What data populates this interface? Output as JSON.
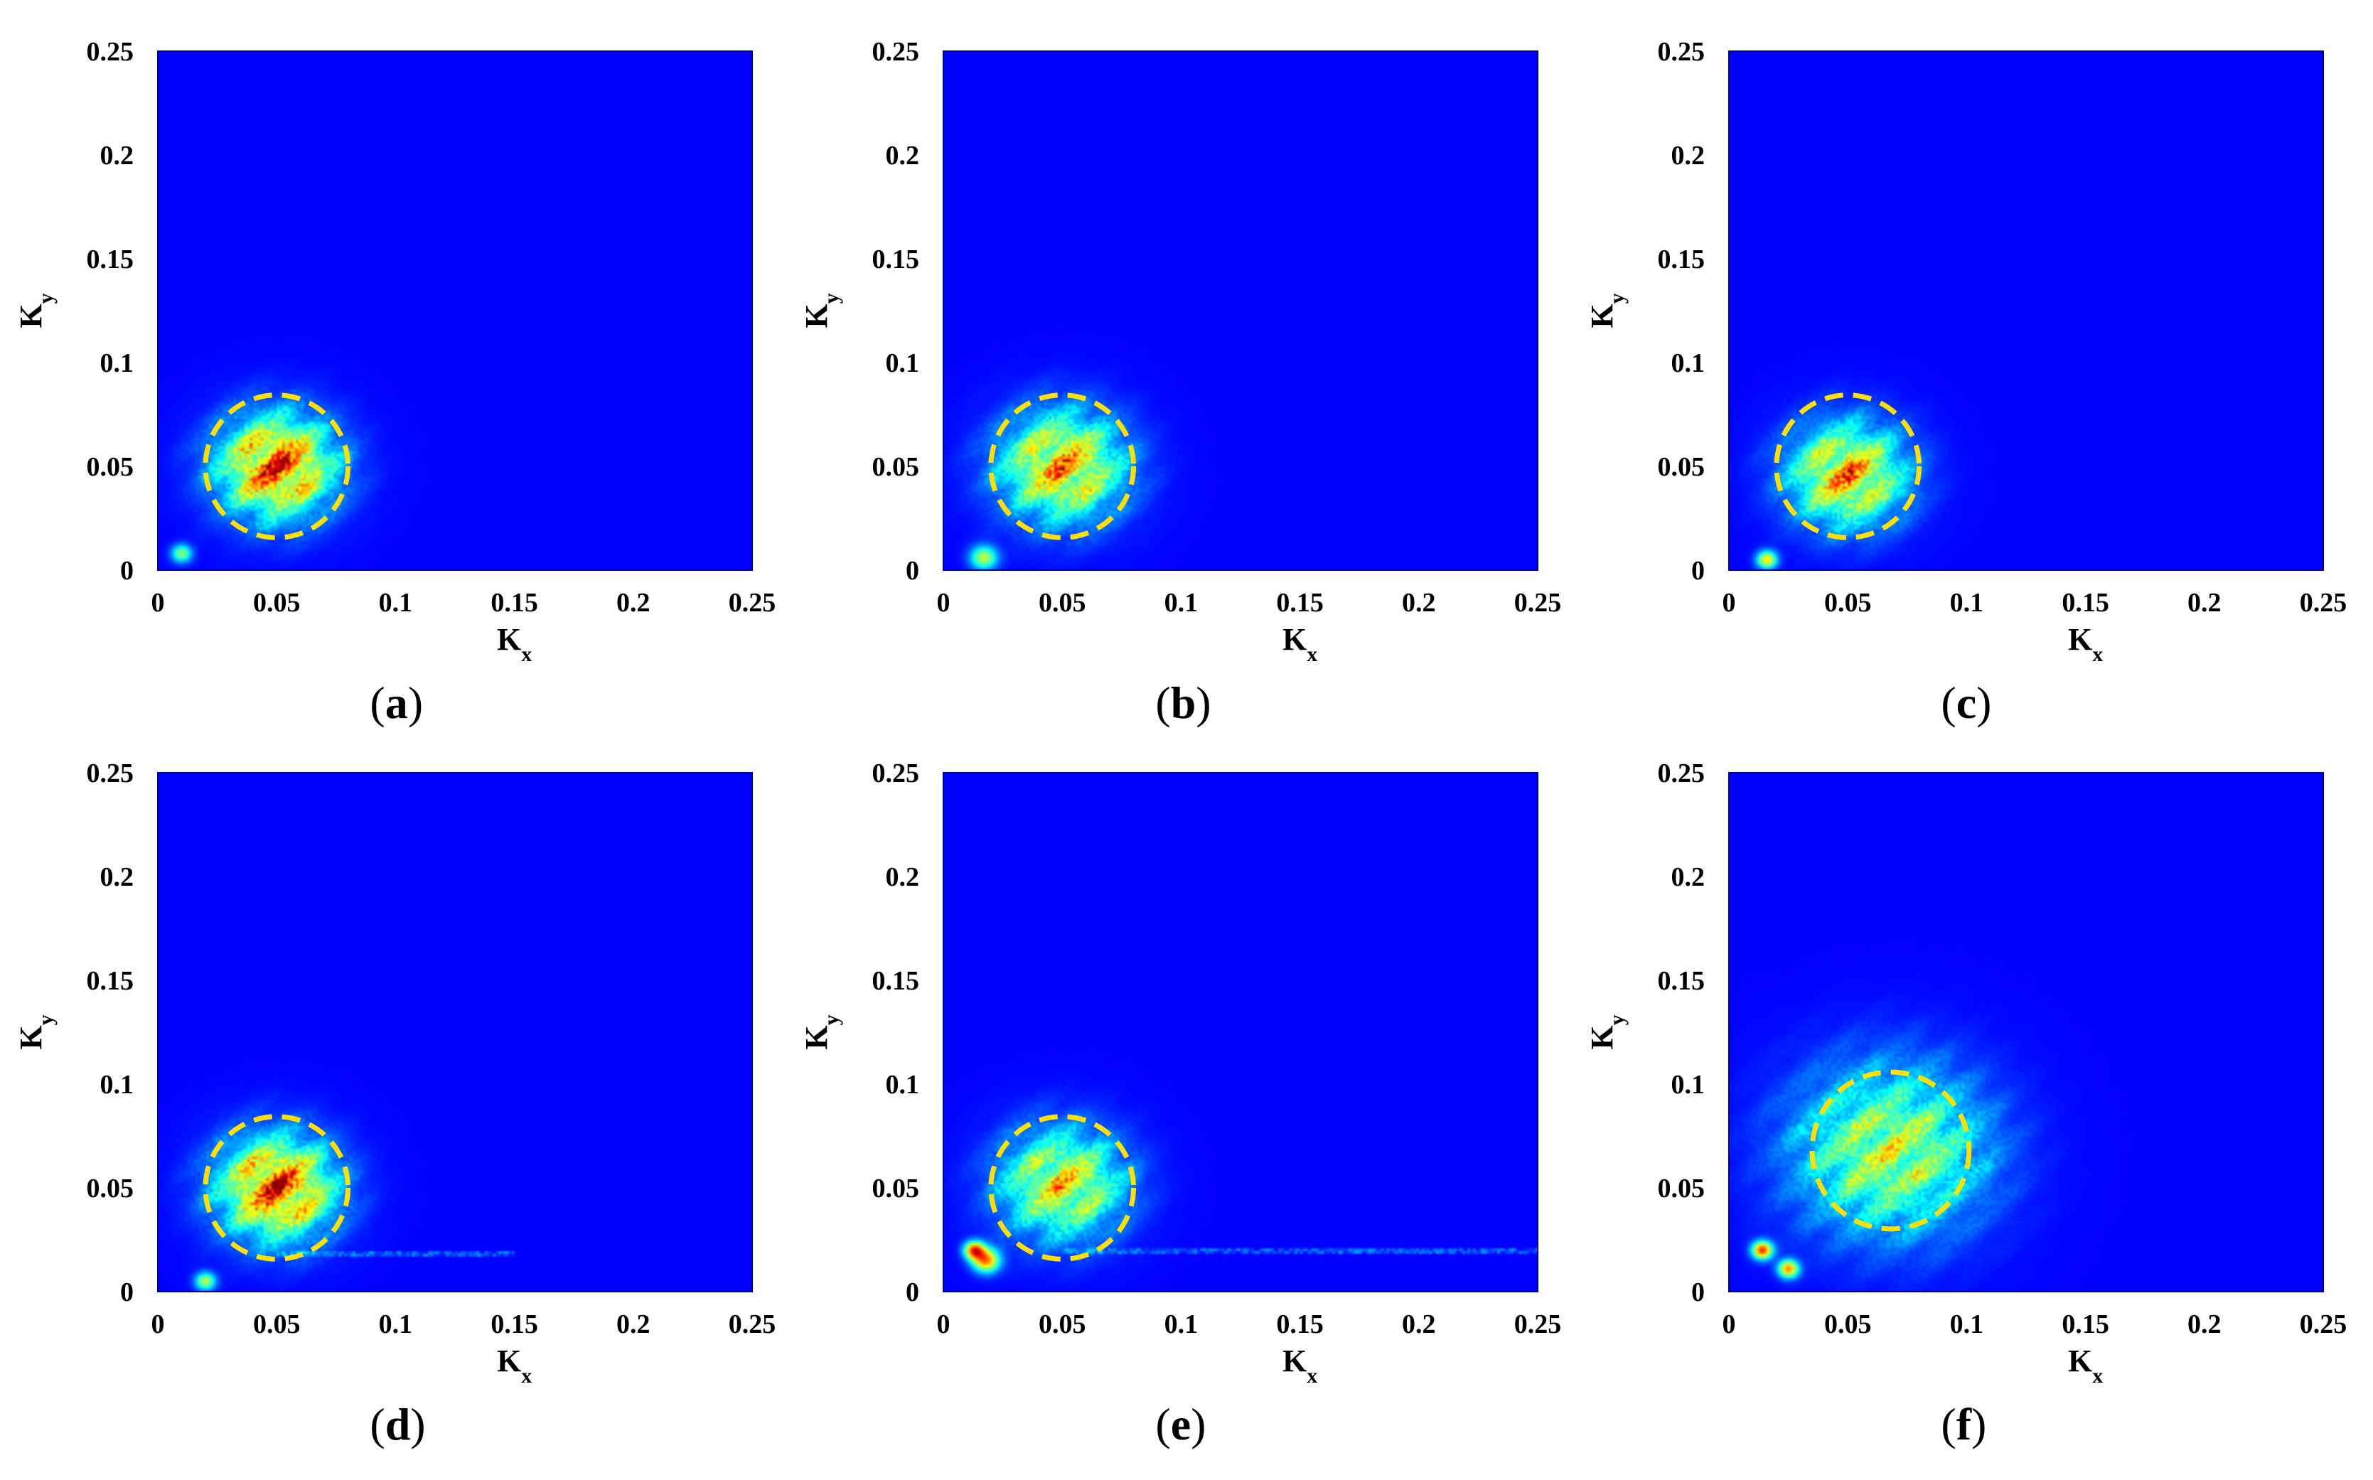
{
  "chart_data": [
    {
      "type": "heatmap",
      "panel": "a",
      "caption_letter": "a",
      "xlabel": "K",
      "xlabel_sub": "x",
      "ylabel": "K",
      "ylabel_sub": "y",
      "xlim": [
        0,
        0.25
      ],
      "ylim": [
        0,
        0.25
      ],
      "xticks": [
        0,
        0.05,
        0.1,
        0.15,
        0.2,
        0.25
      ],
      "yticks": [
        0,
        0.05,
        0.1,
        0.15,
        0.2,
        0.25
      ],
      "xtick_labels": [
        "0",
        "0.05",
        "0.1",
        "0.15",
        "0.2",
        "0.25"
      ],
      "ytick_labels": [
        "0",
        "0.05",
        "0.1",
        "0.15",
        "0.2",
        "0.25"
      ],
      "colormap": "jet",
      "background_color": "#00008f",
      "highlight_circle": {
        "center": [
          0.05,
          0.05
        ],
        "radius": 0.03,
        "color": "#ffe000",
        "style": "dashed"
      },
      "peaks": [
        {
          "x": 0.05,
          "y": 0.05,
          "intensity": 1.0,
          "spread": 0.017
        }
      ],
      "small_peaks": [
        {
          "x": 0.01,
          "y": 0.008,
          "intensity": 0.45,
          "spread": 0.003
        }
      ],
      "horizontal_streak": null
    },
    {
      "type": "heatmap",
      "panel": "b",
      "caption_letter": "b",
      "xlabel": "K",
      "xlabel_sub": "x",
      "ylabel": "K",
      "ylabel_sub": "y",
      "xlim": [
        0,
        0.25
      ],
      "ylim": [
        0,
        0.25
      ],
      "xticks": [
        0,
        0.05,
        0.1,
        0.15,
        0.2,
        0.25
      ],
      "yticks": [
        0,
        0.05,
        0.1,
        0.15,
        0.2,
        0.25
      ],
      "xtick_labels": [
        "0",
        "0.05",
        "0.1",
        "0.15",
        "0.2",
        "0.25"
      ],
      "ytick_labels": [
        "0",
        "0.05",
        "0.1",
        "0.15",
        "0.2",
        "0.25"
      ],
      "colormap": "jet",
      "background_color": "#00008f",
      "highlight_circle": {
        "center": [
          0.05,
          0.05
        ],
        "radius": 0.03,
        "color": "#ffe000",
        "style": "dashed"
      },
      "peaks": [
        {
          "x": 0.05,
          "y": 0.05,
          "intensity": 0.85,
          "spread": 0.018
        }
      ],
      "small_peaks": [
        {
          "x": 0.017,
          "y": 0.006,
          "intensity": 0.5,
          "spread": 0.004
        }
      ],
      "horizontal_streak": null
    },
    {
      "type": "heatmap",
      "panel": "c",
      "caption_letter": "c",
      "xlabel": "K",
      "xlabel_sub": "x",
      "ylabel": "K",
      "ylabel_sub": "y",
      "xlim": [
        0,
        0.25
      ],
      "ylim": [
        0,
        0.25
      ],
      "xticks": [
        0,
        0.05,
        0.1,
        0.15,
        0.2,
        0.25
      ],
      "yticks": [
        0,
        0.05,
        0.1,
        0.15,
        0.2,
        0.25
      ],
      "xtick_labels": [
        "0",
        "0.05",
        "0.1",
        "0.15",
        "0.2",
        "0.25"
      ],
      "ytick_labels": [
        "0",
        "0.05",
        "0.1",
        "0.15",
        "0.2",
        "0.25"
      ],
      "colormap": "jet",
      "background_color": "#00008f",
      "highlight_circle": {
        "center": [
          0.05,
          0.05
        ],
        "radius": 0.03,
        "color": "#ffe000",
        "style": "dashed"
      },
      "peaks": [
        {
          "x": 0.05,
          "y": 0.046,
          "intensity": 0.85,
          "spread": 0.017
        }
      ],
      "small_peaks": [
        {
          "x": 0.016,
          "y": 0.005,
          "intensity": 0.6,
          "spread": 0.003
        }
      ],
      "horizontal_streak": null
    },
    {
      "type": "heatmap",
      "panel": "d",
      "caption_letter": "d",
      "xlabel": "K",
      "xlabel_sub": "x",
      "ylabel": "K",
      "ylabel_sub": "y",
      "xlim": [
        0,
        0.25
      ],
      "ylim": [
        0,
        0.25
      ],
      "xticks": [
        0,
        0.05,
        0.1,
        0.15,
        0.2,
        0.25
      ],
      "yticks": [
        0,
        0.05,
        0.1,
        0.15,
        0.2,
        0.25
      ],
      "xtick_labels": [
        "0",
        "0.05",
        "0.1",
        "0.15",
        "0.2",
        "0.25"
      ],
      "ytick_labels": [
        "0",
        "0.05",
        "0.1",
        "0.15",
        "0.2",
        "0.25"
      ],
      "colormap": "jet",
      "background_color": "#00008f",
      "highlight_circle": {
        "center": [
          0.05,
          0.05
        ],
        "radius": 0.03,
        "color": "#ffe000",
        "style": "dashed"
      },
      "peaks": [
        {
          "x": 0.05,
          "y": 0.05,
          "intensity": 1.0,
          "spread": 0.017
        }
      ],
      "small_peaks": [
        {
          "x": 0.02,
          "y": 0.005,
          "intensity": 0.5,
          "spread": 0.003
        }
      ],
      "horizontal_streak": {
        "y": 0.018,
        "x_from": 0.05,
        "x_to": 0.15
      }
    },
    {
      "type": "heatmap",
      "panel": "e",
      "caption_letter": "e",
      "xlabel": "K",
      "xlabel_sub": "x",
      "ylabel": "K",
      "ylabel_sub": "y",
      "xlim": [
        0,
        0.25
      ],
      "ylim": [
        0,
        0.25
      ],
      "xticks": [
        0,
        0.05,
        0.1,
        0.15,
        0.2,
        0.25
      ],
      "yticks": [
        0,
        0.05,
        0.1,
        0.15,
        0.2,
        0.25
      ],
      "xtick_labels": [
        "0",
        "0.05",
        "0.1",
        "0.15",
        "0.2",
        "0.25"
      ],
      "ytick_labels": [
        "0",
        "0.05",
        "0.1",
        "0.15",
        "0.2",
        "0.25"
      ],
      "colormap": "jet",
      "background_color": "#00008f",
      "highlight_circle": {
        "center": [
          0.05,
          0.05
        ],
        "radius": 0.03,
        "color": "#ffe000",
        "style": "dashed"
      },
      "peaks": [
        {
          "x": 0.05,
          "y": 0.052,
          "intensity": 0.75,
          "spread": 0.018
        }
      ],
      "small_peaks": [
        {
          "x": 0.013,
          "y": 0.02,
          "intensity": 0.75,
          "spread": 0.003
        },
        {
          "x": 0.018,
          "y": 0.015,
          "intensity": 0.7,
          "spread": 0.004
        }
      ],
      "horizontal_streak": {
        "y": 0.02,
        "x_from": 0.05,
        "x_to": 0.25
      }
    },
    {
      "type": "heatmap",
      "panel": "f",
      "caption_letter": "f",
      "xlabel": "K",
      "xlabel_sub": "x",
      "ylabel": "K",
      "ylabel_sub": "y",
      "xlim": [
        0,
        0.25
      ],
      "ylim": [
        0,
        0.25
      ],
      "xticks": [
        0,
        0.05,
        0.1,
        0.15,
        0.2,
        0.25
      ],
      "yticks": [
        0,
        0.05,
        0.1,
        0.15,
        0.2,
        0.25
      ],
      "xtick_labels": [
        "0",
        "0.05",
        "0.1",
        "0.15",
        "0.2",
        "0.25"
      ],
      "ytick_labels": [
        "0",
        "0.05",
        "0.1",
        "0.15",
        "0.2",
        "0.25"
      ],
      "colormap": "jet",
      "background_color": "#00008f",
      "highlight_circle": {
        "center": [
          0.068,
          0.068
        ],
        "radius": 0.033,
        "color": "#ffe000",
        "style": "dashed"
      },
      "peaks": [
        {
          "x": 0.068,
          "y": 0.068,
          "intensity": 0.65,
          "spread": 0.028
        }
      ],
      "small_peaks": [
        {
          "x": 0.014,
          "y": 0.02,
          "intensity": 0.8,
          "spread": 0.003
        },
        {
          "x": 0.025,
          "y": 0.011,
          "intensity": 0.7,
          "spread": 0.003
        }
      ],
      "horizontal_streak": null
    }
  ]
}
